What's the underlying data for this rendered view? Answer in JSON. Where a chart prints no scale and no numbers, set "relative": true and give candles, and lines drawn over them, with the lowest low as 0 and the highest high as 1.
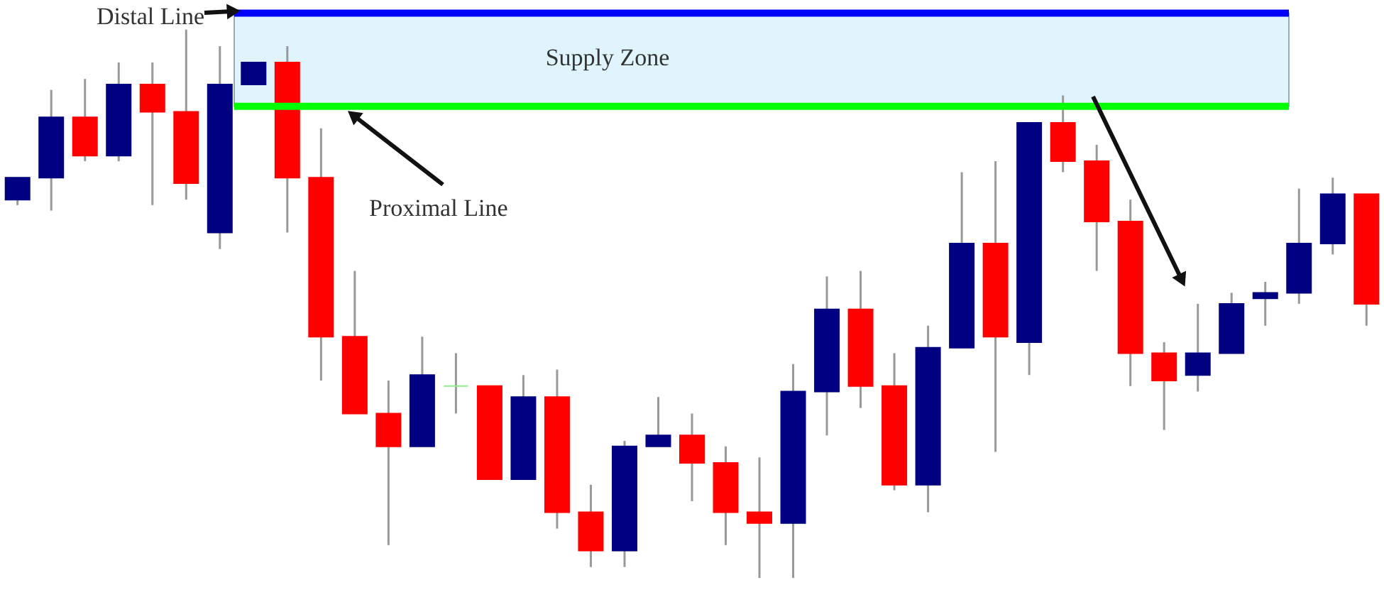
{
  "chart_data": {
    "type": "candlestick",
    "relative": true,
    "categories": [
      null,
      null,
      null,
      null,
      null,
      null,
      null,
      null,
      null,
      null,
      null,
      null,
      null,
      null,
      null,
      null,
      null,
      null,
      null,
      null,
      null,
      null,
      null,
      null,
      null,
      null,
      null,
      null,
      null,
      null,
      null,
      null,
      null,
      null,
      null,
      null,
      null,
      null,
      null,
      null,
      null
    ],
    "ohlc": [
      [
        0.69,
        0.73,
        0.68,
        0.73
      ],
      [
        0.73,
        0.89,
        0.67,
        0.84
      ],
      [
        0.84,
        0.91,
        0.76,
        0.77
      ],
      [
        0.77,
        0.94,
        0.76,
        0.9
      ],
      [
        0.9,
        0.94,
        0.68,
        0.85
      ],
      [
        0.85,
        1.0,
        0.69,
        0.72
      ],
      [
        0.63,
        0.97,
        0.6,
        0.9
      ],
      [
        0.9,
        0.94,
        0.9,
        0.94
      ],
      [
        0.94,
        0.97,
        0.63,
        0.73
      ],
      [
        0.73,
        0.82,
        0.36,
        0.44
      ],
      [
        0.44,
        0.56,
        0.3,
        0.3
      ],
      [
        0.3,
        0.36,
        0.06,
        0.24
      ],
      [
        0.24,
        0.44,
        0.24,
        0.37
      ],
      [
        0.35,
        0.41,
        0.3,
        0.35
      ],
      [
        0.35,
        0.35,
        0.18,
        0.18
      ],
      [
        0.18,
        0.37,
        0.18,
        0.33
      ],
      [
        0.33,
        0.38,
        0.09,
        0.12
      ],
      [
        0.12,
        0.17,
        0.02,
        0.05
      ],
      [
        0.05,
        0.25,
        0.02,
        0.24
      ],
      [
        0.24,
        0.33,
        0.24,
        0.26
      ],
      [
        0.26,
        0.3,
        0.14,
        0.21
      ],
      [
        0.21,
        0.24,
        0.06,
        0.12
      ],
      [
        0.12,
        0.22,
        0.0,
        0.1
      ],
      [
        0.1,
        0.39,
        0.0,
        0.34
      ],
      [
        0.34,
        0.55,
        0.26,
        0.49
      ],
      [
        0.49,
        0.56,
        0.31,
        0.35
      ],
      [
        0.35,
        0.41,
        0.16,
        0.17
      ],
      [
        0.17,
        0.46,
        0.12,
        0.42
      ],
      [
        0.42,
        0.74,
        0.42,
        0.61
      ],
      [
        0.61,
        0.76,
        0.23,
        0.44
      ],
      [
        0.43,
        0.83,
        0.37,
        0.83
      ],
      [
        0.83,
        0.88,
        0.74,
        0.76
      ],
      [
        0.76,
        0.79,
        0.56,
        0.65
      ],
      [
        0.65,
        0.69,
        0.35,
        0.41
      ],
      [
        0.41,
        0.43,
        0.27,
        0.36
      ],
      [
        0.37,
        0.5,
        0.34,
        0.41
      ],
      [
        0.41,
        0.52,
        0.41,
        0.5
      ],
      [
        0.51,
        0.54,
        0.46,
        0.52
      ],
      [
        0.52,
        0.71,
        0.5,
        0.61
      ],
      [
        0.61,
        0.73,
        0.59,
        0.7
      ],
      [
        0.7,
        0.7,
        0.46,
        0.5
      ]
    ],
    "colors": [
      "#000080",
      "#000080",
      "#ff0000",
      "#000080",
      "#ff0000",
      "#ff0000",
      "#000080",
      "#000080",
      "#ff0000",
      "#ff0000",
      "#ff0000",
      "#ff0000",
      "#000080",
      "#90ee90",
      "#ff0000",
      "#000080",
      "#ff0000",
      "#ff0000",
      "#000080",
      "#000080",
      "#ff0000",
      "#ff0000",
      "#ff0000",
      "#000080",
      "#000080",
      "#ff0000",
      "#ff0000",
      "#000080",
      "#000080",
      "#ff0000",
      "#000080",
      "#ff0000",
      "#ff0000",
      "#ff0000",
      "#ff0000",
      "#000080",
      "#000080",
      "#000080",
      "#000080",
      "#000080",
      "#ff0000"
    ],
    "bands": [
      {
        "axis": "y",
        "from": 0.86,
        "to": 1.03,
        "label": "Supply Zone",
        "color": "#dff4fc"
      }
    ],
    "ref_lines": [
      {
        "axis": "y",
        "value": 1.03,
        "label": "Distal Line",
        "color": "#0000ff"
      },
      {
        "axis": "y",
        "value": 0.86,
        "label": "Proximal Line",
        "color": "#00ff00"
      }
    ]
  }
}
